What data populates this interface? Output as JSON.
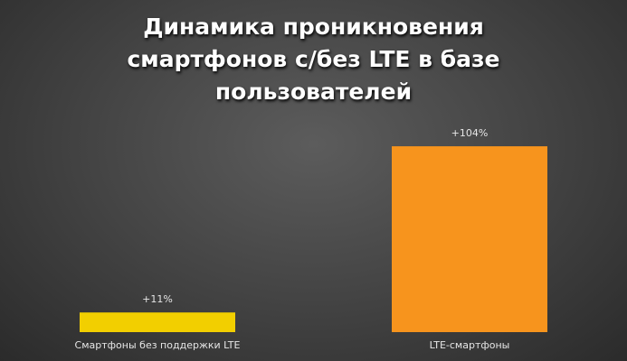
{
  "chart_data": {
    "type": "bar",
    "title": "Динамика проникновения смартфонов с/без LTE в базе пользователей",
    "categories": [
      "Смартфоны без поддержки LTE",
      "LTE-смартфоны"
    ],
    "values": [
      11,
      104
    ],
    "value_labels": [
      "+11%",
      "+104%"
    ],
    "colors": [
      "#f2cf00",
      "#f7941d"
    ]
  }
}
